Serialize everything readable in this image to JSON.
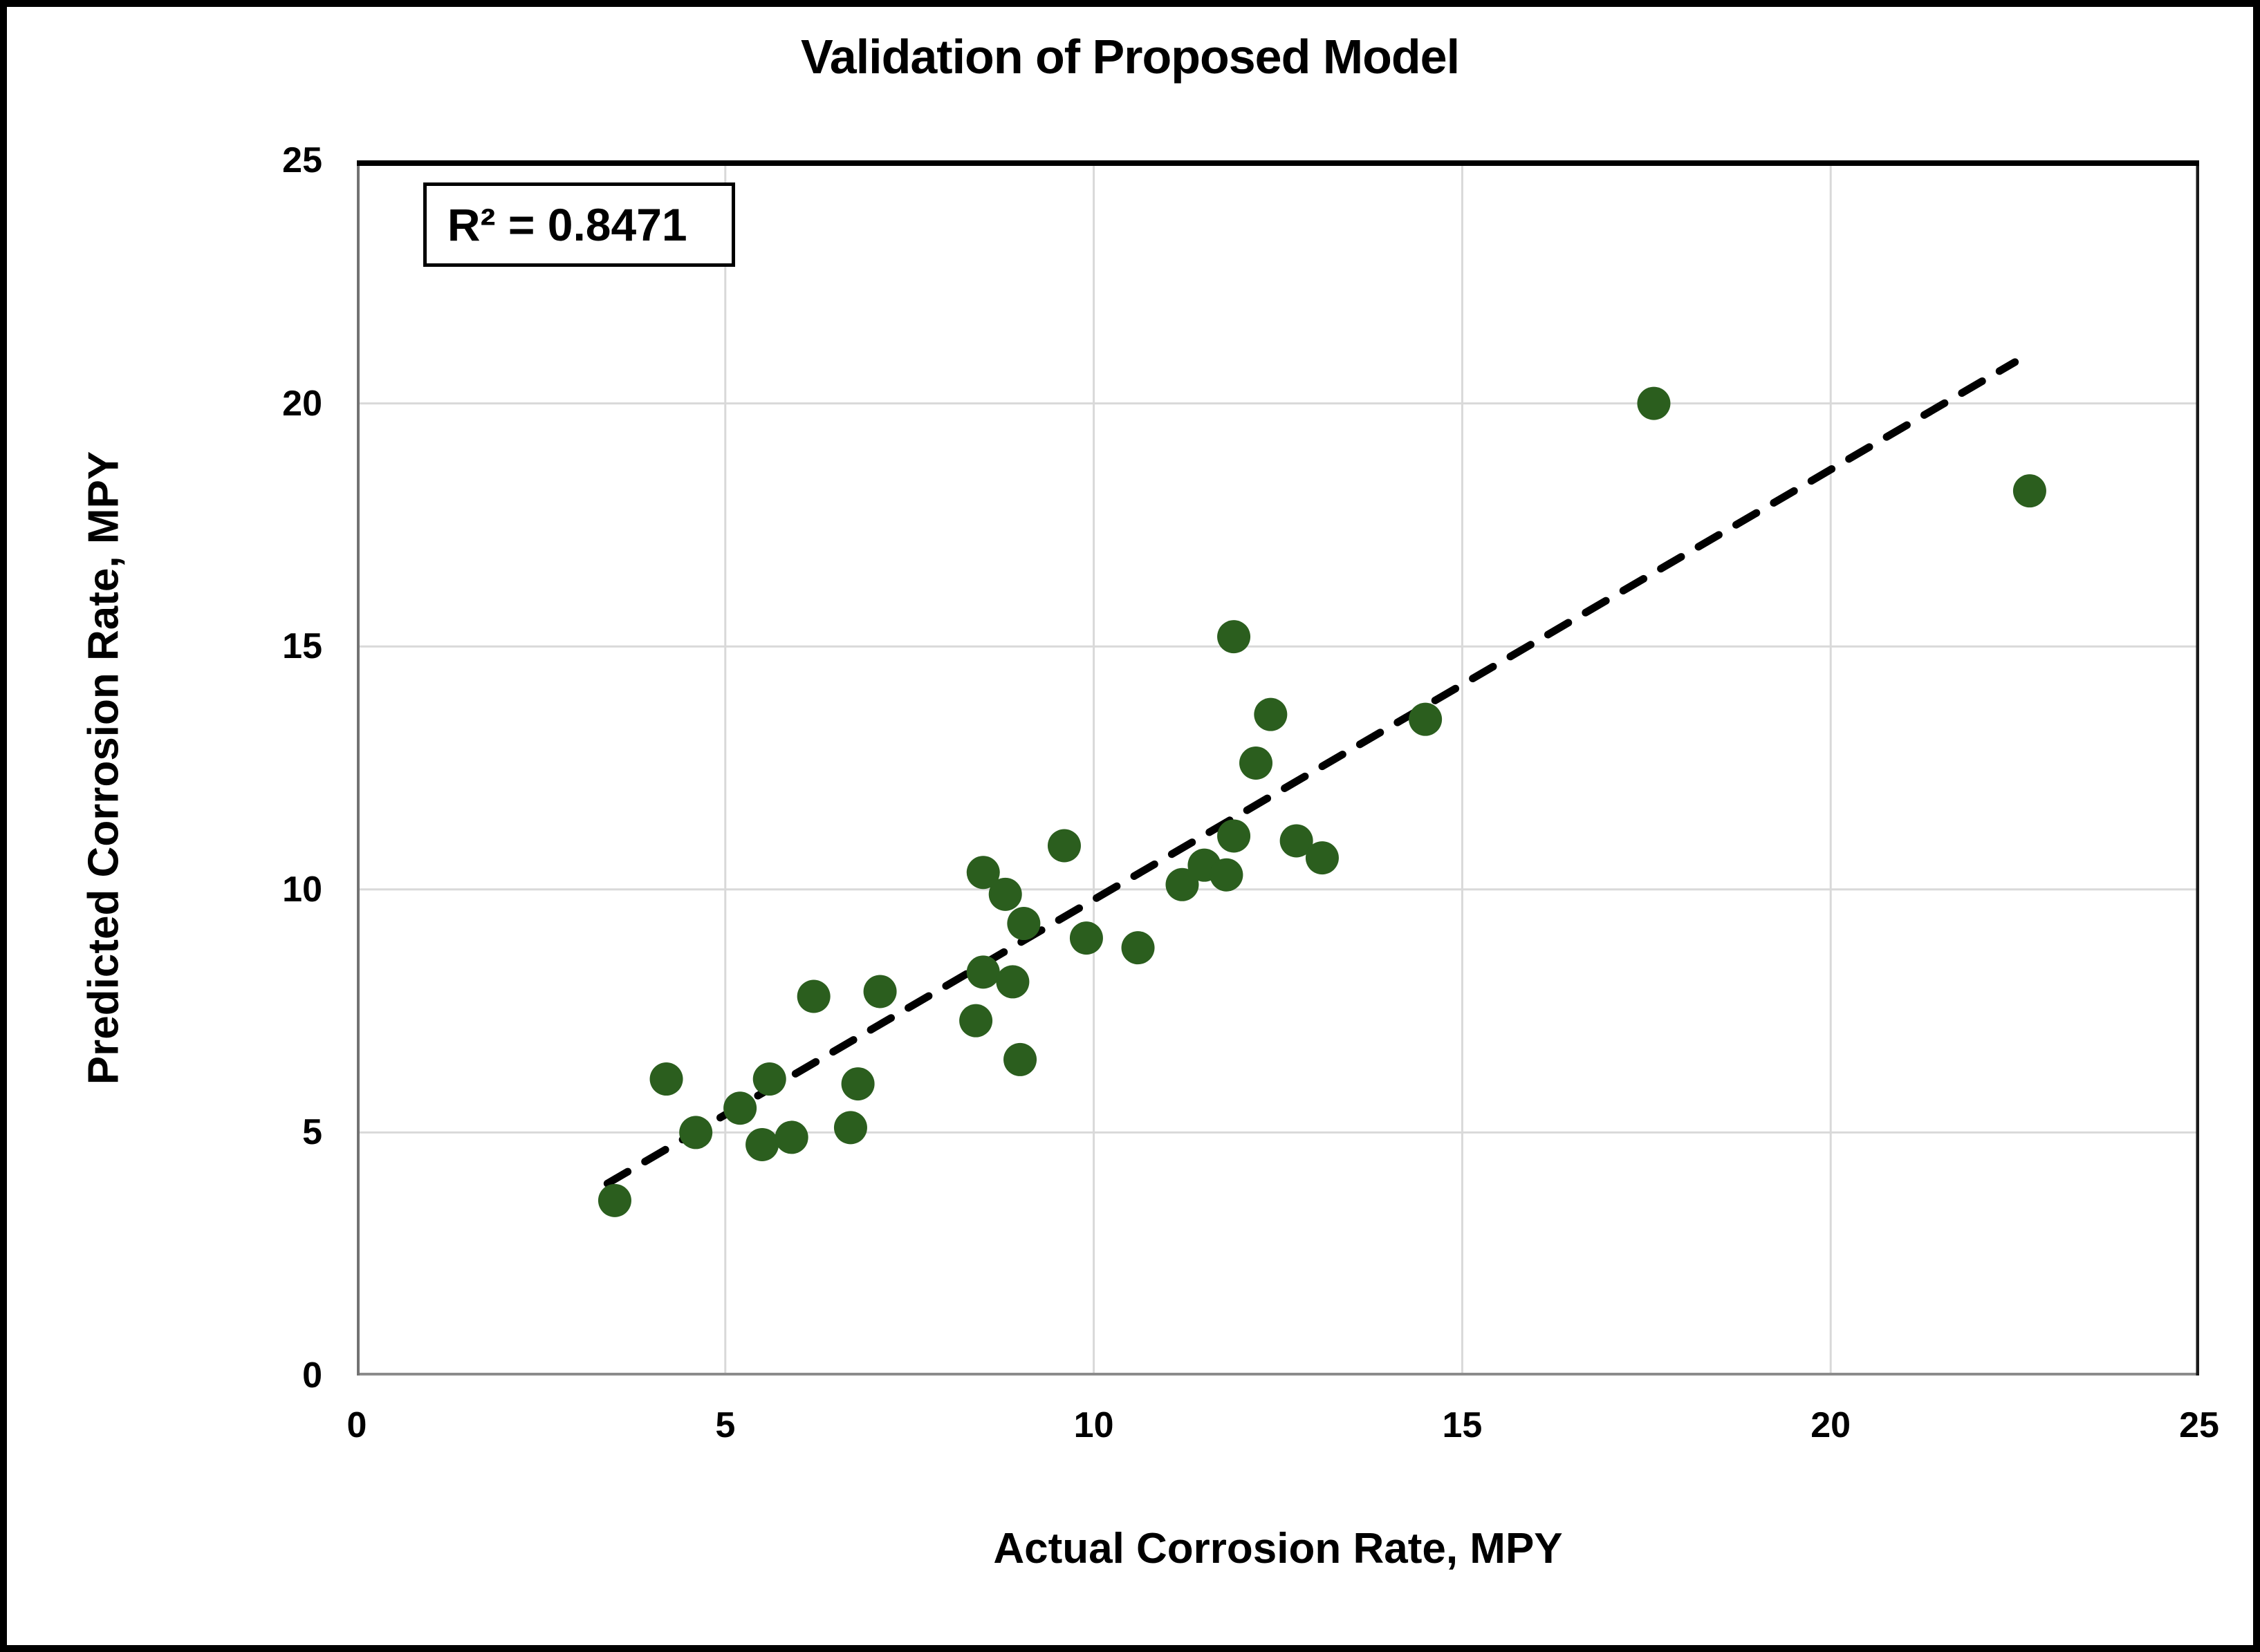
{
  "chart_data": {
    "type": "scatter",
    "title": "Validation of Proposed Model",
    "xlabel": "Actual Corrosion Rate, MPY",
    "ylabel": "Predicted Corrosion Rate, MPY",
    "xlim": [
      0,
      25
    ],
    "ylim": [
      0,
      25
    ],
    "xticks": [
      0,
      5,
      10,
      15,
      20,
      25
    ],
    "yticks": [
      0,
      5,
      10,
      15,
      20,
      25
    ],
    "grid": true,
    "legend_position": "none",
    "annotation": {
      "text": "R² = 0.8471",
      "x": 0.9,
      "y": 24.55
    },
    "marker_color": "#2B5E1E",
    "gridline_color": "#D9D9D9",
    "trendline": {
      "style": "dashed",
      "color": "#000000",
      "points": [
        [
          3.4,
          3.95
        ],
        [
          22.5,
          20.85
        ]
      ]
    },
    "series": [
      {
        "name": "Predicted vs Actual",
        "points": [
          [
            3.5,
            3.6
          ],
          [
            4.2,
            6.1
          ],
          [
            4.6,
            5.0
          ],
          [
            5.2,
            5.5
          ],
          [
            5.5,
            4.75
          ],
          [
            5.9,
            4.9
          ],
          [
            5.6,
            6.1
          ],
          [
            6.2,
            7.8
          ],
          [
            6.7,
            5.1
          ],
          [
            6.8,
            6.0
          ],
          [
            7.1,
            7.9
          ],
          [
            8.4,
            7.3
          ],
          [
            8.5,
            8.3
          ],
          [
            8.9,
            8.1
          ],
          [
            9.0,
            6.5
          ],
          [
            8.5,
            10.35
          ],
          [
            8.8,
            9.9
          ],
          [
            9.05,
            9.3
          ],
          [
            9.6,
            10.9
          ],
          [
            9.9,
            9.0
          ],
          [
            10.6,
            8.8
          ],
          [
            11.2,
            10.1
          ],
          [
            11.5,
            10.5
          ],
          [
            11.8,
            10.3
          ],
          [
            11.9,
            11.1
          ],
          [
            12.75,
            11.0
          ],
          [
            13.1,
            10.65
          ],
          [
            11.9,
            15.2
          ],
          [
            12.4,
            13.6
          ],
          [
            12.2,
            12.6
          ],
          [
            14.5,
            13.5
          ],
          [
            17.6,
            20.0
          ],
          [
            22.7,
            18.2
          ]
        ]
      }
    ]
  }
}
